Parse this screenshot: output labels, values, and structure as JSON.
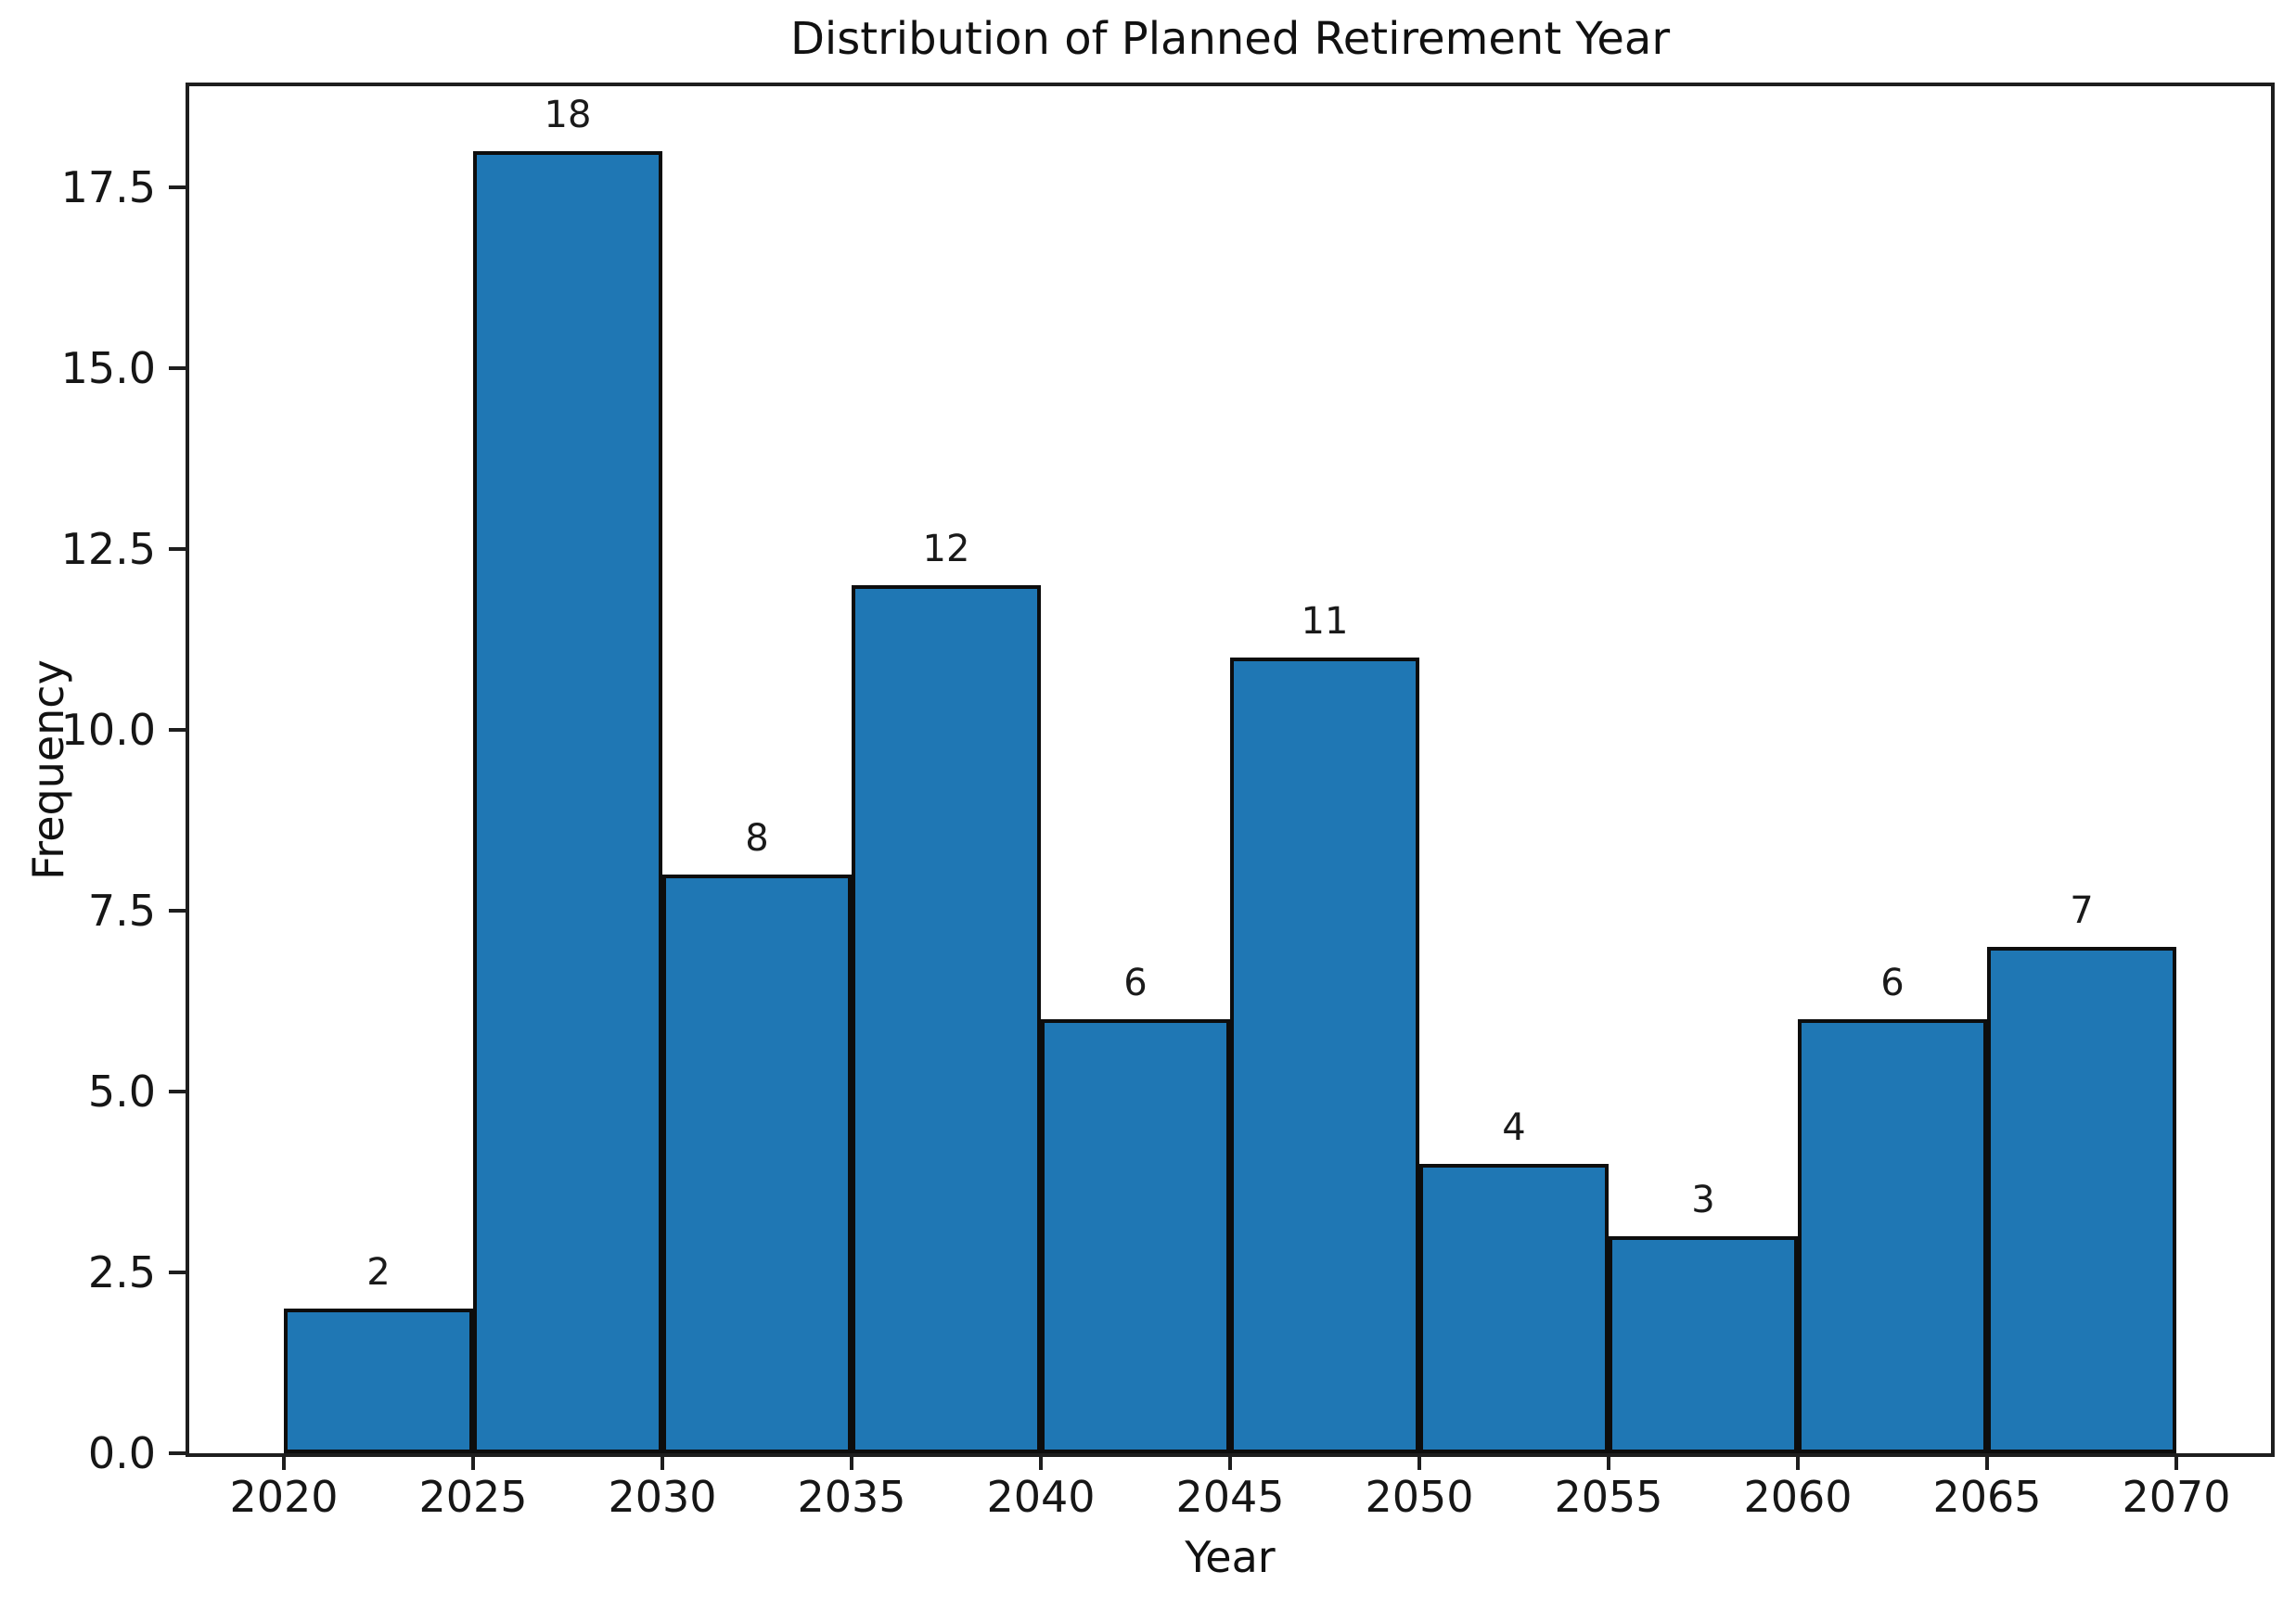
{
  "figure": {
    "background": "#ffffff"
  },
  "chart_data": {
    "type": "histogram",
    "title": "Distribution of Planned Retirement Year",
    "xlabel": "Year",
    "ylabel": "Frequency",
    "bin_edges": [
      2020,
      2025,
      2030,
      2035,
      2040,
      2045,
      2050,
      2055,
      2060,
      2065,
      2070
    ],
    "counts": [
      2,
      18,
      8,
      12,
      6,
      11,
      4,
      3,
      6,
      7
    ],
    "bar_value_labels": [
      "2",
      "18",
      "8",
      "12",
      "6",
      "11",
      "4",
      "3",
      "6",
      "7"
    ],
    "x_ticks": [
      {
        "value": 2020,
        "label": "2020"
      },
      {
        "value": 2025,
        "label": "2025"
      },
      {
        "value": 2030,
        "label": "2030"
      },
      {
        "value": 2035,
        "label": "2035"
      },
      {
        "value": 2040,
        "label": "2040"
      },
      {
        "value": 2045,
        "label": "2045"
      },
      {
        "value": 2050,
        "label": "2050"
      },
      {
        "value": 2055,
        "label": "2055"
      },
      {
        "value": 2060,
        "label": "2060"
      },
      {
        "value": 2065,
        "label": "2065"
      },
      {
        "value": 2070,
        "label": "2070"
      }
    ],
    "y_ticks": [
      {
        "value": 0,
        "label": "0.0"
      },
      {
        "value": 2.5,
        "label": "2.5"
      },
      {
        "value": 5,
        "label": "5.0"
      },
      {
        "value": 7.5,
        "label": "7.5"
      },
      {
        "value": 10,
        "label": "10.0"
      },
      {
        "value": 12.5,
        "label": "12.5"
      },
      {
        "value": 15,
        "label": "15.0"
      },
      {
        "value": 17.5,
        "label": "17.5"
      }
    ],
    "xlim": [
      2017.5,
      2072.5
    ],
    "ylim": [
      0,
      18.9
    ],
    "grid": false,
    "legend_position": "none",
    "bar_color": "#1f77b4",
    "bar_edge_color": "#0d0d0d",
    "spine_color": "#1e1e1e",
    "text_color": "#161616"
  }
}
